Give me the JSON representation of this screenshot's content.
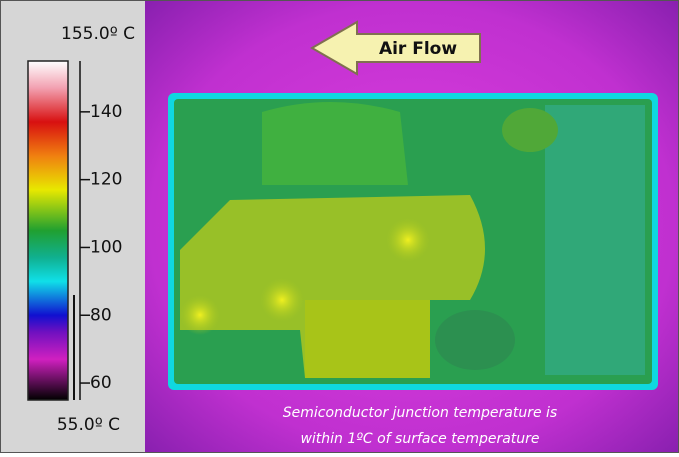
{
  "colorbar": {
    "ylim": [
      {
        "value": 55,
        "label": "55.0º C"
      },
      {
        "value": 155,
        "label": "155.0º C"
      }
    ],
    "yticks": [
      140,
      120,
      100,
      80,
      60
    ]
  },
  "arrow_label": "Air Flow",
  "caption": [
    "Semiconductor junction temperature is",
    "within 1ºC of surface temperature"
  ]
}
